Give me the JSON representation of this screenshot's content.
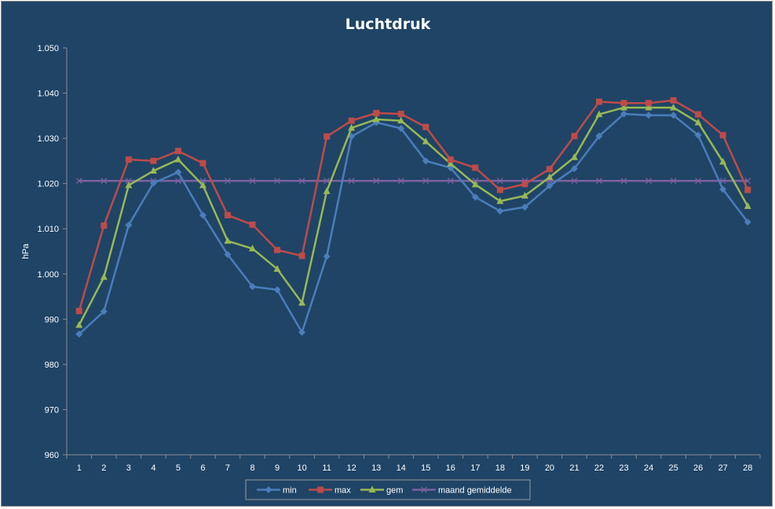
{
  "chart_data": {
    "type": "line",
    "title": "Luchtdruk",
    "xlabel": "",
    "ylabel": "hPa",
    "categories": [
      "1",
      "2",
      "3",
      "4",
      "5",
      "6",
      "7",
      "8",
      "9",
      "10",
      "11",
      "12",
      "13",
      "14",
      "15",
      "16",
      "17",
      "18",
      "19",
      "20",
      "21",
      "22",
      "23",
      "24",
      "25",
      "26",
      "27",
      "28"
    ],
    "y_ticks": [
      "960",
      "970",
      "980",
      "990",
      "1.000",
      "1.010",
      "1.020",
      "1.030",
      "1.040",
      "1.050"
    ],
    "ylim": [
      960,
      1050
    ],
    "grid": false,
    "legend_position": "bottom",
    "series": [
      {
        "name": "min",
        "color": "#4a7ebb",
        "marker": "diamond",
        "values": [
          986.7,
          991.7,
          1010.8,
          1020.1,
          1022.5,
          1013.0,
          1004.3,
          997.2,
          996.5,
          987.1,
          1003.9,
          1030.4,
          1033.5,
          1032.2,
          1025.0,
          1023.5,
          1017.0,
          1013.9,
          1014.8,
          1019.5,
          1023.3,
          1030.5,
          1035.4,
          1035.1,
          1035.1,
          1030.7,
          1018.7,
          1011.5
        ]
      },
      {
        "name": "max",
        "color": "#be4b48",
        "marker": "square",
        "values": [
          991.8,
          1010.7,
          1025.3,
          1025.0,
          1027.2,
          1024.5,
          1013.0,
          1010.9,
          1005.3,
          1004.0,
          1030.4,
          1033.9,
          1035.6,
          1035.4,
          1032.5,
          1025.3,
          1023.5,
          1018.6,
          1019.9,
          1023.2,
          1030.5,
          1038.1,
          1037.8,
          1037.8,
          1038.4,
          1035.3,
          1030.7,
          1018.6
        ]
      },
      {
        "name": "gem",
        "color": "#98b954",
        "marker": "triangle",
        "values": [
          988.7,
          999.3,
          1019.6,
          1022.8,
          1025.3,
          1019.6,
          1007.3,
          1005.6,
          1001.1,
          993.6,
          1018.3,
          1032.3,
          1034.2,
          1033.9,
          1029.3,
          1024.4,
          1019.8,
          1016.1,
          1017.3,
          1021.4,
          1025.8,
          1035.3,
          1036.8,
          1036.8,
          1036.8,
          1033.5,
          1024.8,
          1015.0
        ]
      },
      {
        "name": "maand gemiddelde",
        "color": "#7d60a0",
        "marker": "x",
        "values": [
          1020.6,
          1020.6,
          1020.6,
          1020.6,
          1020.6,
          1020.6,
          1020.6,
          1020.6,
          1020.6,
          1020.6,
          1020.6,
          1020.6,
          1020.6,
          1020.6,
          1020.6,
          1020.6,
          1020.6,
          1020.6,
          1020.6,
          1020.6,
          1020.6,
          1020.6,
          1020.6,
          1020.6,
          1020.6,
          1020.6,
          1020.6,
          1020.6
        ]
      }
    ]
  }
}
